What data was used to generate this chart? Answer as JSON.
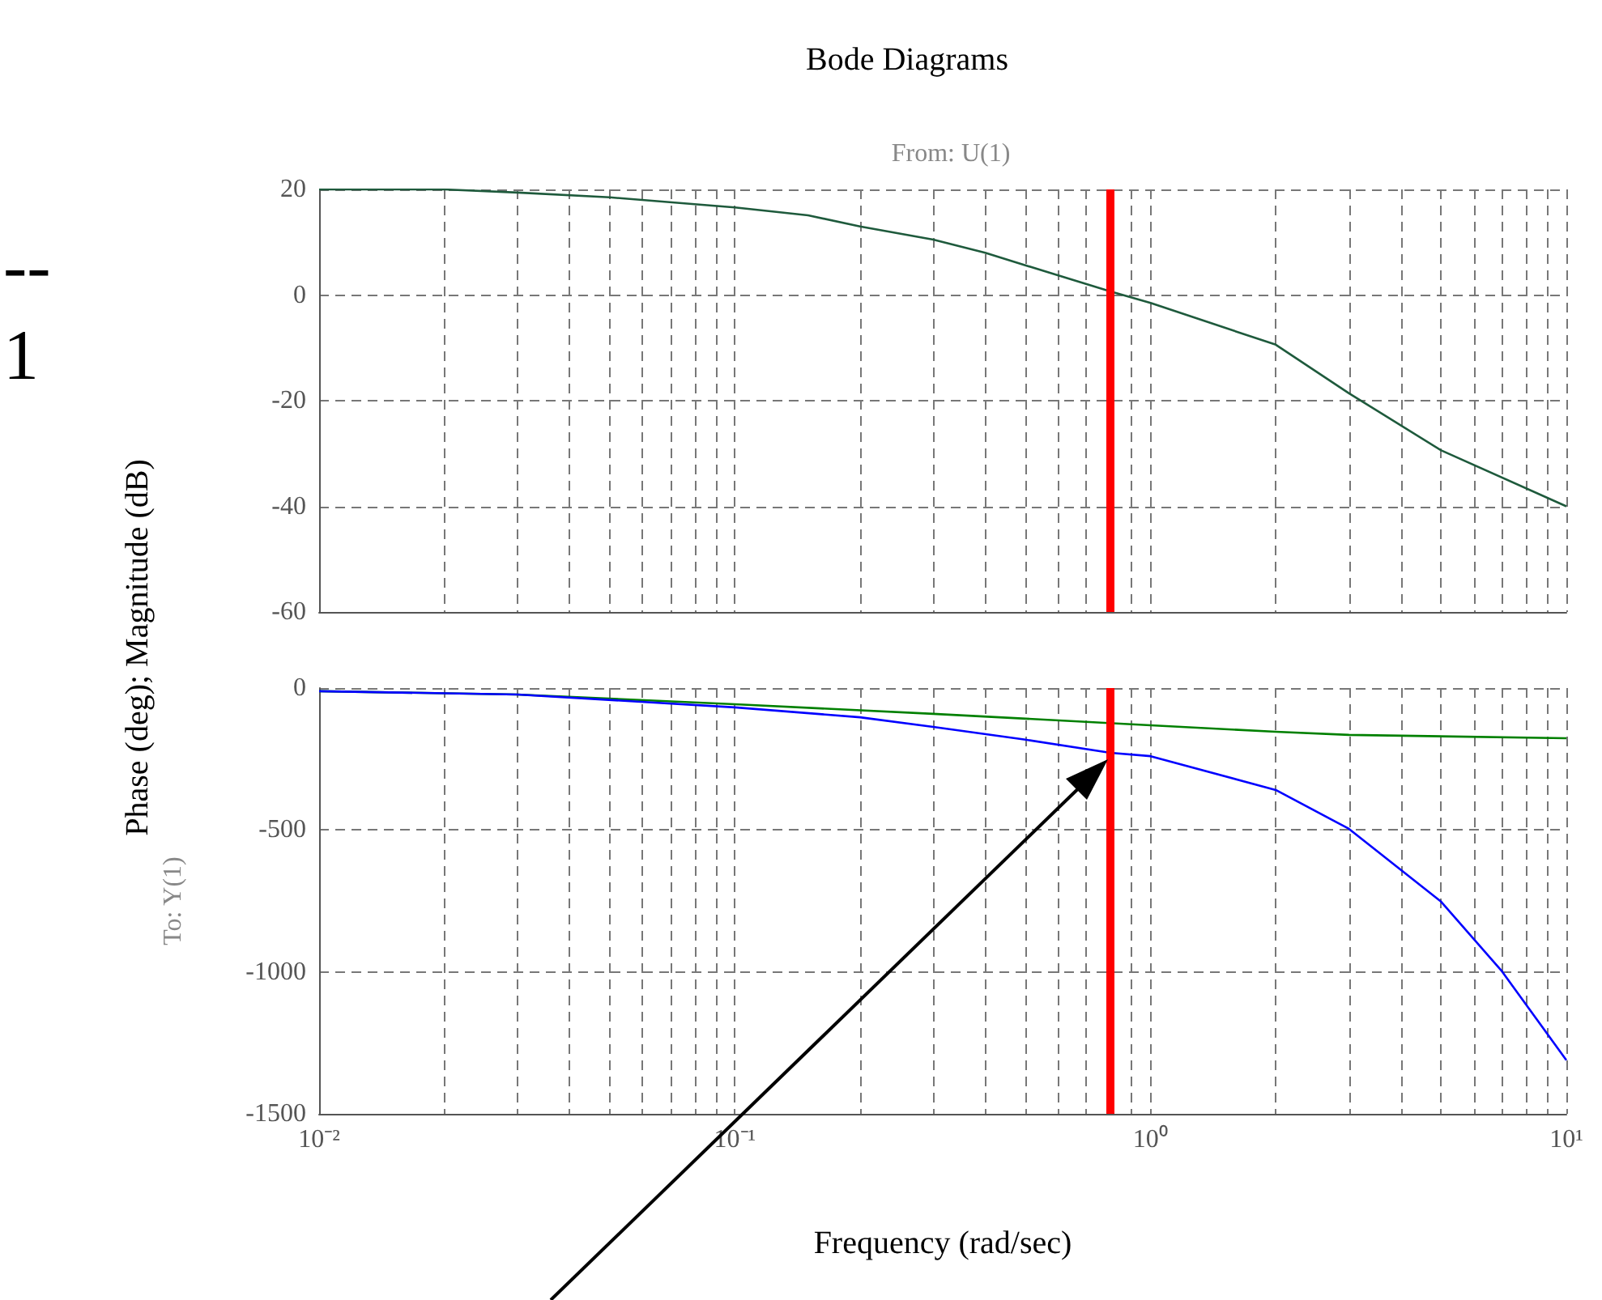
{
  "chart_data": [
    {
      "type": "line",
      "title": "Bode Diagrams",
      "subtitle": "From: U(1)",
      "ylabel": "Phase (deg); Magnitude (dB)",
      "annotations": [
        "--",
        "1"
      ],
      "xlim": [
        0.01,
        10
      ],
      "xticks": [
        {
          "value": 0.01,
          "label": null
        },
        {
          "value": 0.02,
          "label": null
        },
        {
          "value": 0.03,
          "label": null
        },
        {
          "value": 0.04,
          "label": null
        },
        {
          "value": 0.05,
          "label": null
        },
        {
          "value": 0.06,
          "label": null
        },
        {
          "value": 0.07,
          "label": null
        },
        {
          "value": 0.08,
          "label": null
        },
        {
          "value": 0.09,
          "label": null
        },
        {
          "value": 0.1,
          "label": null
        },
        {
          "value": 0.2,
          "label": null
        },
        {
          "value": 0.3,
          "label": null
        },
        {
          "value": 0.4,
          "label": null
        },
        {
          "value": 0.5,
          "label": null
        },
        {
          "value": 0.6,
          "label": null
        },
        {
          "value": 0.7,
          "label": null
        },
        {
          "value": 0.8,
          "label": null
        },
        {
          "value": 0.9,
          "label": null
        },
        {
          "value": 1,
          "label": null
        },
        {
          "value": 2,
          "label": null
        },
        {
          "value": 3,
          "label": null
        },
        {
          "value": 4,
          "label": null
        },
        {
          "value": 5,
          "label": null
        },
        {
          "value": 6,
          "label": null
        },
        {
          "value": 7,
          "label": null
        },
        {
          "value": 8,
          "label": null
        },
        {
          "value": 9,
          "label": null
        },
        {
          "value": 10,
          "label": null
        }
      ],
      "ylim": [
        -60,
        20
      ],
      "yticks": [
        -60,
        -40,
        -20,
        0,
        20
      ],
      "log": "x",
      "grid": true,
      "tick_labels": "y",
      "marker": "none",
      "ref_lines": [
        {
          "axis": "x",
          "value": 0.8,
          "color": "#ff0000"
        }
      ],
      "series": [
        {
          "color": "#1e5a3c",
          "x": [
            0.01,
            0.02,
            0.03,
            0.05,
            0.08,
            0.1,
            0.15,
            0.2,
            0.3,
            0.4,
            0.6,
            0.8,
            1,
            2,
            3,
            5,
            10
          ],
          "values": [
            20,
            20,
            19.4,
            18.5,
            17.2,
            16.6,
            15.1,
            13,
            10.5,
            8,
            3.7,
            0.7,
            -1.5,
            -9.4,
            -18.6,
            -29.4,
            -40
          ]
        }
      ]
    },
    {
      "type": "line",
      "xlabel": "Frequency (rad/sec)",
      "ylabel": "To: Y(1)",
      "xlim": [
        0.01,
        10
      ],
      "xticks": [
        {
          "value": 0.01,
          "label": "10⁻²"
        },
        {
          "value": 0.02,
          "label": null
        },
        {
          "value": 0.03,
          "label": null
        },
        {
          "value": 0.04,
          "label": null
        },
        {
          "value": 0.05,
          "label": null
        },
        {
          "value": 0.06,
          "label": null
        },
        {
          "value": 0.07,
          "label": null
        },
        {
          "value": 0.08,
          "label": null
        },
        {
          "value": 0.09,
          "label": null
        },
        {
          "value": 0.1,
          "label": "10⁻¹"
        },
        {
          "value": 0.2,
          "label": null
        },
        {
          "value": 0.3,
          "label": null
        },
        {
          "value": 0.4,
          "label": null
        },
        {
          "value": 0.5,
          "label": null
        },
        {
          "value": 0.6,
          "label": null
        },
        {
          "value": 0.7,
          "label": null
        },
        {
          "value": 0.8,
          "label": null
        },
        {
          "value": 0.9,
          "label": null
        },
        {
          "value": 1,
          "label": "10⁰"
        },
        {
          "value": 2,
          "label": null
        },
        {
          "value": 3,
          "label": null
        },
        {
          "value": 4,
          "label": null
        },
        {
          "value": 5,
          "label": null
        },
        {
          "value": 6,
          "label": null
        },
        {
          "value": 7,
          "label": null
        },
        {
          "value": 8,
          "label": null
        },
        {
          "value": 9,
          "label": null
        },
        {
          "value": 10,
          "label": "10¹"
        }
      ],
      "ylim": [
        -1500,
        0
      ],
      "yticks": [
        -1500,
        -1000,
        -500,
        0
      ],
      "log": "x",
      "grid": true,
      "marker": "none",
      "ref_lines": [
        {
          "axis": "x",
          "value": 0.8,
          "color": "#ff0000"
        }
      ],
      "series": [
        {
          "color": "#008000",
          "x": [
            0.01,
            0.03,
            0.1,
            0.3,
            1,
            2,
            3,
            10
          ],
          "values": [
            -11,
            -23,
            -57,
            -91,
            -131,
            -154,
            -165,
            -177
          ]
        },
        {
          "color": "#0000ff",
          "x": [
            0.01,
            0.03,
            0.1,
            0.2,
            0.3,
            0.5,
            0.8,
            1,
            2,
            3,
            5,
            7,
            10
          ],
          "values": [
            -11,
            -23,
            -68,
            -103,
            -137,
            -182,
            -228,
            -240,
            -359,
            -496,
            -753,
            -998,
            -1311
          ]
        }
      ]
    }
  ]
}
